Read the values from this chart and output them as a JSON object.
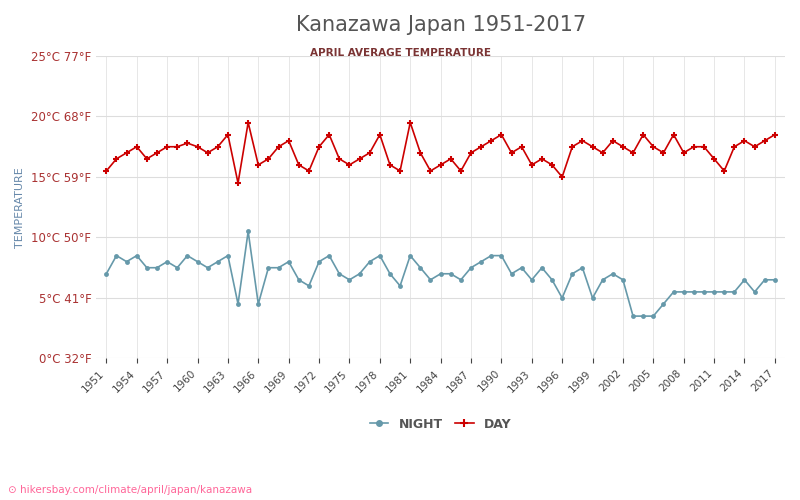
{
  "title": "Kanazawa Japan 1951-2017",
  "subtitle": "APRIL AVERAGE TEMPERATURE",
  "ylabel": "TEMPERATURE",
  "url_text": "hikersbay.com/climate/april/japan/kanazawa",
  "years": [
    1951,
    1952,
    1953,
    1954,
    1955,
    1956,
    1957,
    1958,
    1959,
    1960,
    1961,
    1962,
    1963,
    1964,
    1965,
    1966,
    1967,
    1968,
    1969,
    1970,
    1971,
    1972,
    1973,
    1974,
    1975,
    1976,
    1977,
    1978,
    1979,
    1980,
    1981,
    1982,
    1983,
    1984,
    1985,
    1986,
    1987,
    1988,
    1989,
    1990,
    1991,
    1992,
    1993,
    1994,
    1995,
    1996,
    1997,
    1998,
    1999,
    2000,
    2001,
    2002,
    2003,
    2004,
    2005,
    2006,
    2007,
    2008,
    2009,
    2010,
    2011,
    2012,
    2013,
    2014,
    2015,
    2016,
    2017
  ],
  "day_temps": [
    15.5,
    16.5,
    17.0,
    17.5,
    16.5,
    17.0,
    17.5,
    17.5,
    17.8,
    17.5,
    17.0,
    17.5,
    18.5,
    14.5,
    19.5,
    16.0,
    16.5,
    17.5,
    18.0,
    16.0,
    15.5,
    17.5,
    18.5,
    16.5,
    16.0,
    16.5,
    17.0,
    18.5,
    16.0,
    15.5,
    19.5,
    17.0,
    15.5,
    16.0,
    16.5,
    15.5,
    17.0,
    17.5,
    18.0,
    18.5,
    17.0,
    17.5,
    16.0,
    16.5,
    16.0,
    15.0,
    17.5,
    18.0,
    17.5,
    17.0,
    18.0,
    17.5,
    17.0,
    18.5,
    17.5,
    17.0,
    18.5,
    17.0,
    17.5,
    17.5,
    16.5,
    15.5,
    17.5,
    18.0,
    17.5,
    18.0,
    18.5
  ],
  "night_temps": [
    7.0,
    8.5,
    8.0,
    8.5,
    7.5,
    7.5,
    8.0,
    7.5,
    8.5,
    8.0,
    7.5,
    8.0,
    8.5,
    4.5,
    10.5,
    4.5,
    7.5,
    7.5,
    8.0,
    6.5,
    6.0,
    8.0,
    8.5,
    7.0,
    6.5,
    7.0,
    8.0,
    8.5,
    7.0,
    6.0,
    8.5,
    7.5,
    6.5,
    7.0,
    7.0,
    6.5,
    7.5,
    8.0,
    8.5,
    8.5,
    7.0,
    7.5,
    6.5,
    7.5,
    6.5,
    5.0,
    7.0,
    7.5,
    5.0,
    6.5,
    7.0,
    6.5,
    3.5,
    3.5,
    3.5,
    4.5,
    5.5,
    5.5,
    5.5,
    5.5,
    5.5,
    5.5,
    5.5,
    6.5,
    5.5,
    6.5,
    6.5
  ],
  "day_color": "#cc0000",
  "night_color": "#6699aa",
  "title_color": "#555555",
  "subtitle_color": "#7a3333",
  "axis_label_color": "#6688aa",
  "tick_color": "#aa3333",
  "grid_color": "#dddddd",
  "ylim": [
    0,
    25
  ],
  "yticks_c": [
    0,
    5,
    10,
    15,
    20,
    25
  ],
  "yticks_f": [
    32,
    41,
    50,
    59,
    68,
    77
  ],
  "xtick_years": [
    1951,
    1954,
    1957,
    1960,
    1963,
    1966,
    1969,
    1972,
    1975,
    1978,
    1981,
    1984,
    1987,
    1990,
    1993,
    1996,
    1999,
    2002,
    2005,
    2008,
    2011,
    2014,
    2017
  ],
  "bg_color": "#ffffff"
}
